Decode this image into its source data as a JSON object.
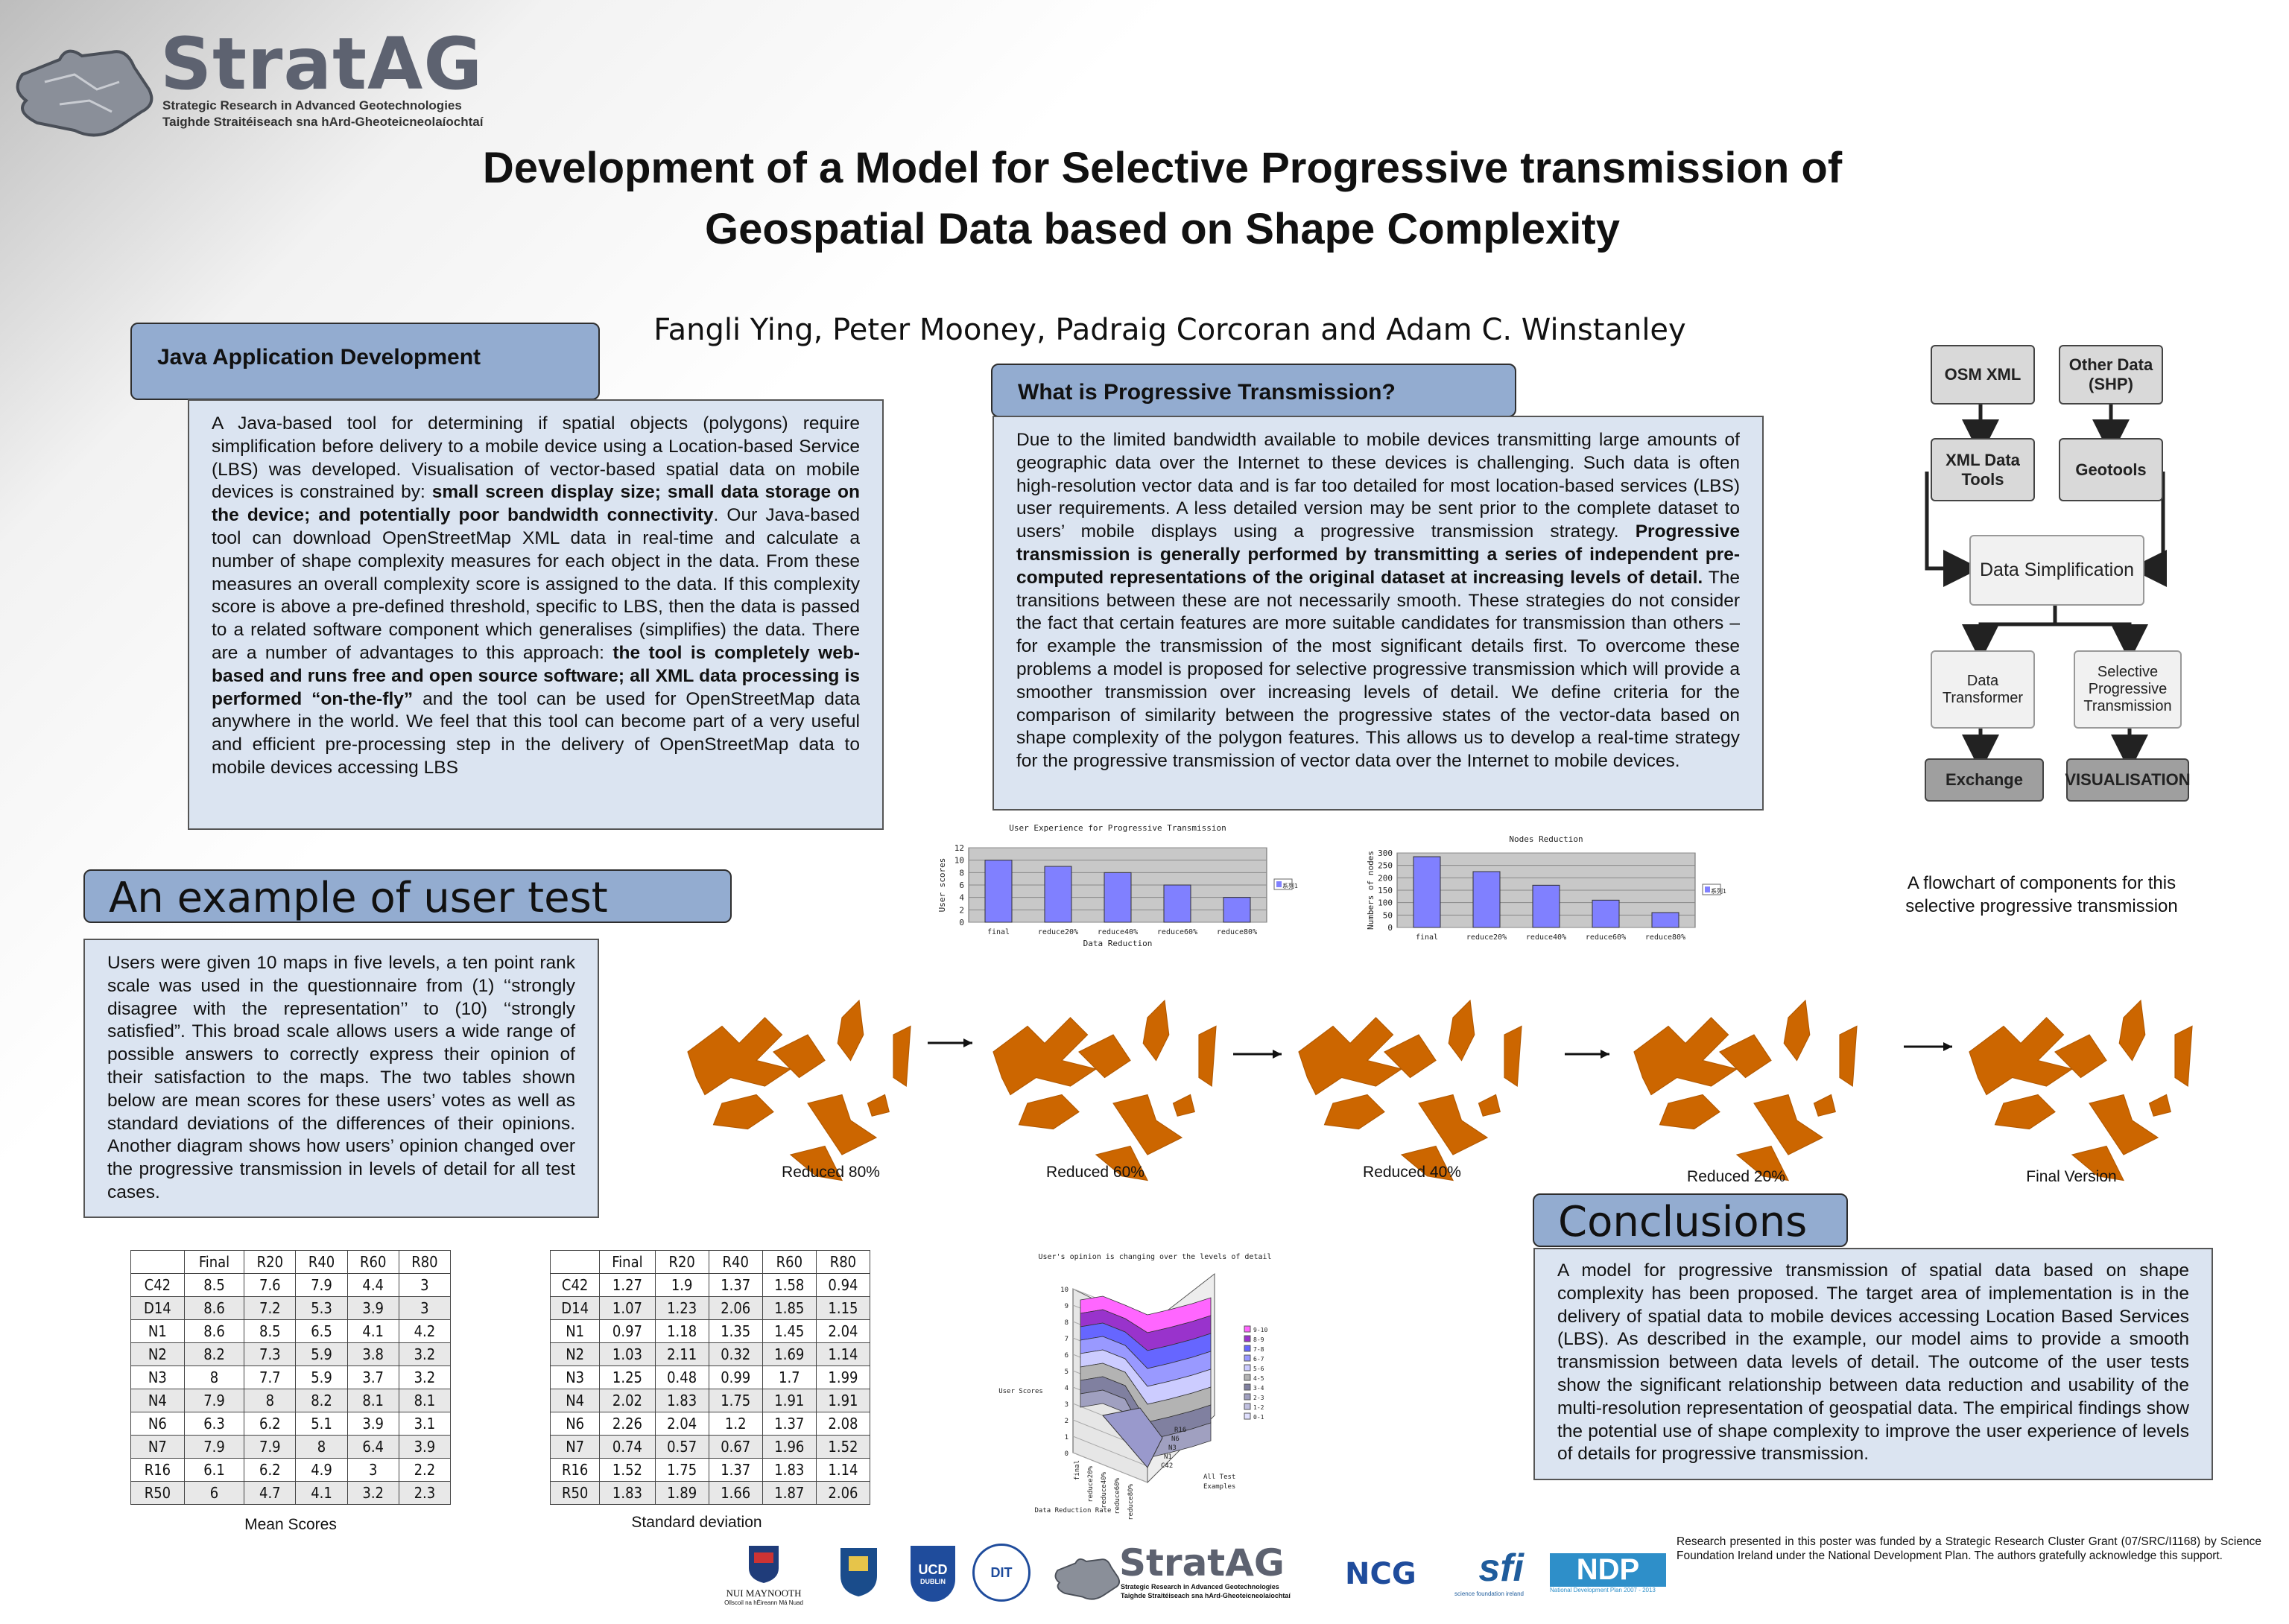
{
  "brand": {
    "name": "StratAG",
    "line1": "Strategic Research in Advanced Geotechnologies",
    "line2": "Taighde Straitéiseach sna hArd-Gheoteicneolaíochtaí"
  },
  "title": {
    "line1": "Development of a Model for Selective Progressive transmission of",
    "line2": "Geospatial Data based on Shape Complexity"
  },
  "authors": "Fangli Ying, Peter Mooney, Padraig Corcoran and Adam C. Winstanley",
  "java": {
    "heading": "Java Application Development",
    "p1": "A Java-based tool for determining if spatial objects (polygons) require simplification before delivery to a mobile device using a Location-based Service (LBS) was developed. Visualisation of vector-based spatial data on mobile devices is constrained by: ",
    "b1": "small screen display size; small data storage on the device; and potentially poor bandwidth connectivity",
    "p2": ". Our Java-based tool can download OpenStreetMap XML data in real-time and calculate a number of shape complexity measures for each object in the data. From these measures an overall complexity score is assigned to the data. If this complexity score is above a pre-defined threshold, specific to LBS, then the data is passed to a related software component which generalises (simplifies) the data. There are a number of advantages to this approach: ",
    "b2": "the tool is completely web-based and runs free and open source software; all XML data processing is performed “on-the-fly”",
    "p3": " and the tool can be used for OpenStreetMap data anywhere in the world. We feel that this tool can become part of a very useful and efficient pre-processing step in the delivery of OpenStreetMap data to mobile  devices accessing LBS"
  },
  "progressive": {
    "heading": "What is Progressive Transmission?",
    "p1": "Due to the limited bandwidth available to mobile devices transmitting large amounts of geographic data over the Internet to these devices is challenging. Such data is often high-resolution vector data and is far too detailed for most location-based services (LBS) user requirements. A less detailed version may be sent prior to the complete dataset to users’ mobile displays using a progressive transmission strategy. ",
    "b1": "Progressive transmission is generally performed by transmitting a series of independent pre-computed representations of the original dataset at increasing levels of detail.",
    "p2": " The transitions between these are not necessarily smooth. These strategies do not consider the fact that certain features are more suitable candidates for transmission than others – for example the transmission of the most significant details first. To overcome these problems a model is proposed for selective progressive transmission which will provide a smoother transmission over increasing levels of detail. We define criteria for the comparison of similarity between the progressive states of the vector-data based on shape complexity of the polygon features. This allows us to develop a real-time strategy for the progressive transmission of vector data over the Internet to mobile devices."
  },
  "flowchart": {
    "osm": "OSM XML",
    "other": "Other Data (SHP)",
    "xmltools": "XML Data Tools",
    "geotools": "Geotools",
    "simplification": "Data Simplification",
    "transformer": "Data Transformer",
    "selective": "Selective Progressive Transmission",
    "exchange": "Exchange",
    "visualisation": "VISUALISATION",
    "caption": "A flowchart of components for this selective progressive transmission"
  },
  "usertest": {
    "heading": "An example of user test",
    "text": "Users were given 10 maps in five levels, a ten point rank scale was used in the questionnaire from (1) ‘‘strongly disagree with the representation’’ to (10) ‘‘strongly satisfied”. This broad scale allows users a wide range of possible answers to correctly express their  opinion of their satisfaction to the maps. The two tables shown below are mean scores for these users’ votes as well as standard deviations of the differences of their opinions. Another diagram shows how users’ opinion changed over the progressive transmission in levels of detail for all test cases."
  },
  "maps": {
    "labels": [
      "Reduced 80%",
      "Reduced 60%",
      "Reduced 40%",
      "Reduced 20%",
      "Final Version"
    ]
  },
  "conclusions": {
    "heading": "Conclusions",
    "text": "A model for progressive transmission of spatial data based on shape complexity has been proposed. The target area of implementation is in the delivery of spatial data to mobile devices accessing Location Based Services (LBS). As described in the example, our model aims to provide a smooth transmission between data levels of detail. The outcome of the user tests show the significant relationship between data reduction and usability of the multi-resolution representation of geospatial data. The empirical findings show the potential use of shape complexity to improve the user experience of levels of details for progressive transmission."
  },
  "tables": {
    "columns": [
      "",
      "Final",
      "R20",
      "R40",
      "R60",
      "R80"
    ],
    "mean": {
      "caption": "Mean Scores",
      "rows": [
        [
          "C42",
          "8.5",
          "7.6",
          "7.9",
          "4.4",
          "3"
        ],
        [
          "D14",
          "8.6",
          "7.2",
          "5.3",
          "3.9",
          "3"
        ],
        [
          "N1",
          "8.6",
          "8.5",
          "6.5",
          "4.1",
          "4.2"
        ],
        [
          "N2",
          "8.2",
          "7.3",
          "5.9",
          "3.8",
          "3.2"
        ],
        [
          "N3",
          "8",
          "7.7",
          "5.9",
          "3.7",
          "3.2"
        ],
        [
          "N4",
          "7.9",
          "8",
          "8.2",
          "8.1",
          "8.1"
        ],
        [
          "N6",
          "6.3",
          "6.2",
          "5.1",
          "3.9",
          "3.1"
        ],
        [
          "N7",
          "7.9",
          "7.9",
          "8",
          "6.4",
          "3.9"
        ],
        [
          "R16",
          "6.1",
          "6.2",
          "4.9",
          "3",
          "2.2"
        ],
        [
          "R50",
          "6",
          "4.7",
          "4.1",
          "3.2",
          "2.3"
        ]
      ]
    },
    "std": {
      "caption": "Standard deviation",
      "rows": [
        [
          "C42",
          "1.27",
          "1.9",
          "1.37",
          "1.58",
          "0.94"
        ],
        [
          "D14",
          "1.07",
          "1.23",
          "2.06",
          "1.85",
          "1.15"
        ],
        [
          "N1",
          "0.97",
          "1.18",
          "1.35",
          "1.45",
          "2.04"
        ],
        [
          "N2",
          "1.03",
          "2.11",
          "0.32",
          "1.69",
          "1.14"
        ],
        [
          "N3",
          "1.25",
          "0.48",
          "0.99",
          "1.7",
          "1.99"
        ],
        [
          "N4",
          "2.02",
          "1.83",
          "1.75",
          "1.91",
          "1.91"
        ],
        [
          "N6",
          "2.26",
          "2.04",
          "1.2",
          "1.37",
          "2.08"
        ],
        [
          "N7",
          "0.74",
          "0.57",
          "0.67",
          "1.96",
          "1.52"
        ],
        [
          "R16",
          "1.52",
          "1.75",
          "1.37",
          "1.83",
          "1.14"
        ],
        [
          "R50",
          "1.83",
          "1.89",
          "1.66",
          "1.87",
          "2.06"
        ]
      ]
    }
  },
  "chart_data": [
    {
      "type": "bar",
      "title": "User Experience for Progressive Transmission",
      "xlabel": "Data Reduction",
      "ylabel": "User scores",
      "categories": [
        "final",
        "reduce20%",
        "reduce40%",
        "reduce60%",
        "reduce80%"
      ],
      "series": [
        {
          "name": "系列1",
          "values": [
            10,
            9,
            8,
            6,
            4
          ]
        }
      ],
      "yticks": [
        "0",
        "2",
        "4",
        "6",
        "8",
        "10",
        "12"
      ],
      "ylim": [
        0,
        12
      ],
      "color": "#8080ff"
    },
    {
      "type": "bar",
      "title": "Nodes Reduction",
      "ylabel": "Numbers of nodes",
      "categories": [
        "final",
        "reduce20%",
        "reduce40%",
        "reduce60%",
        "reduce80%"
      ],
      "series": [
        {
          "name": "系列1",
          "values": [
            285,
            225,
            170,
            110,
            60
          ]
        }
      ],
      "yticks": [
        "0",
        "50",
        "100",
        "150",
        "200",
        "250",
        "300"
      ],
      "ylim": [
        0,
        300
      ],
      "color": "#8080ff"
    },
    {
      "type": "surface",
      "title": "User's opinion is changing over the levels of detail",
      "xlabel": "Data Reduction Rate",
      "ylabel": "User Scores",
      "zticks": [
        "0",
        "1",
        "2",
        "3",
        "4",
        "5",
        "6",
        "7",
        "8",
        "9",
        "10"
      ],
      "x_categories": [
        "final",
        "reduce20%",
        "reduce40%",
        "reduce60%",
        "reduce80%"
      ],
      "y_categories": [
        "C42",
        "N1",
        "N3",
        "N6",
        "R16",
        "All Test Examples"
      ],
      "legend": [
        "9-10",
        "8-9",
        "7-8",
        "6-7",
        "5-6",
        "4-5",
        "3-4",
        "2-3",
        "1-2",
        "0-1"
      ]
    }
  ],
  "footer": {
    "funding": "Research presented in this poster was funded by a Strategic Research Cluster Grant (07/SRC/I1168) by Science Foundation Ireland under the National Development Plan. The authors gratefully acknowledge this support.",
    "nuim": "NUI MAYNOOTH",
    "nuim_sub": "Ollscoil na hÉireann Má Nuad",
    "ucd": "UCD",
    "ucd_sub": "DUBLIN",
    "dit": "DIT",
    "ncg": "NCG",
    "sfi": "sfi",
    "sfi_sub": "science foundation ireland",
    "ndp": "NDP",
    "ndp_sub": "National Development Plan 2007 - 2013"
  }
}
